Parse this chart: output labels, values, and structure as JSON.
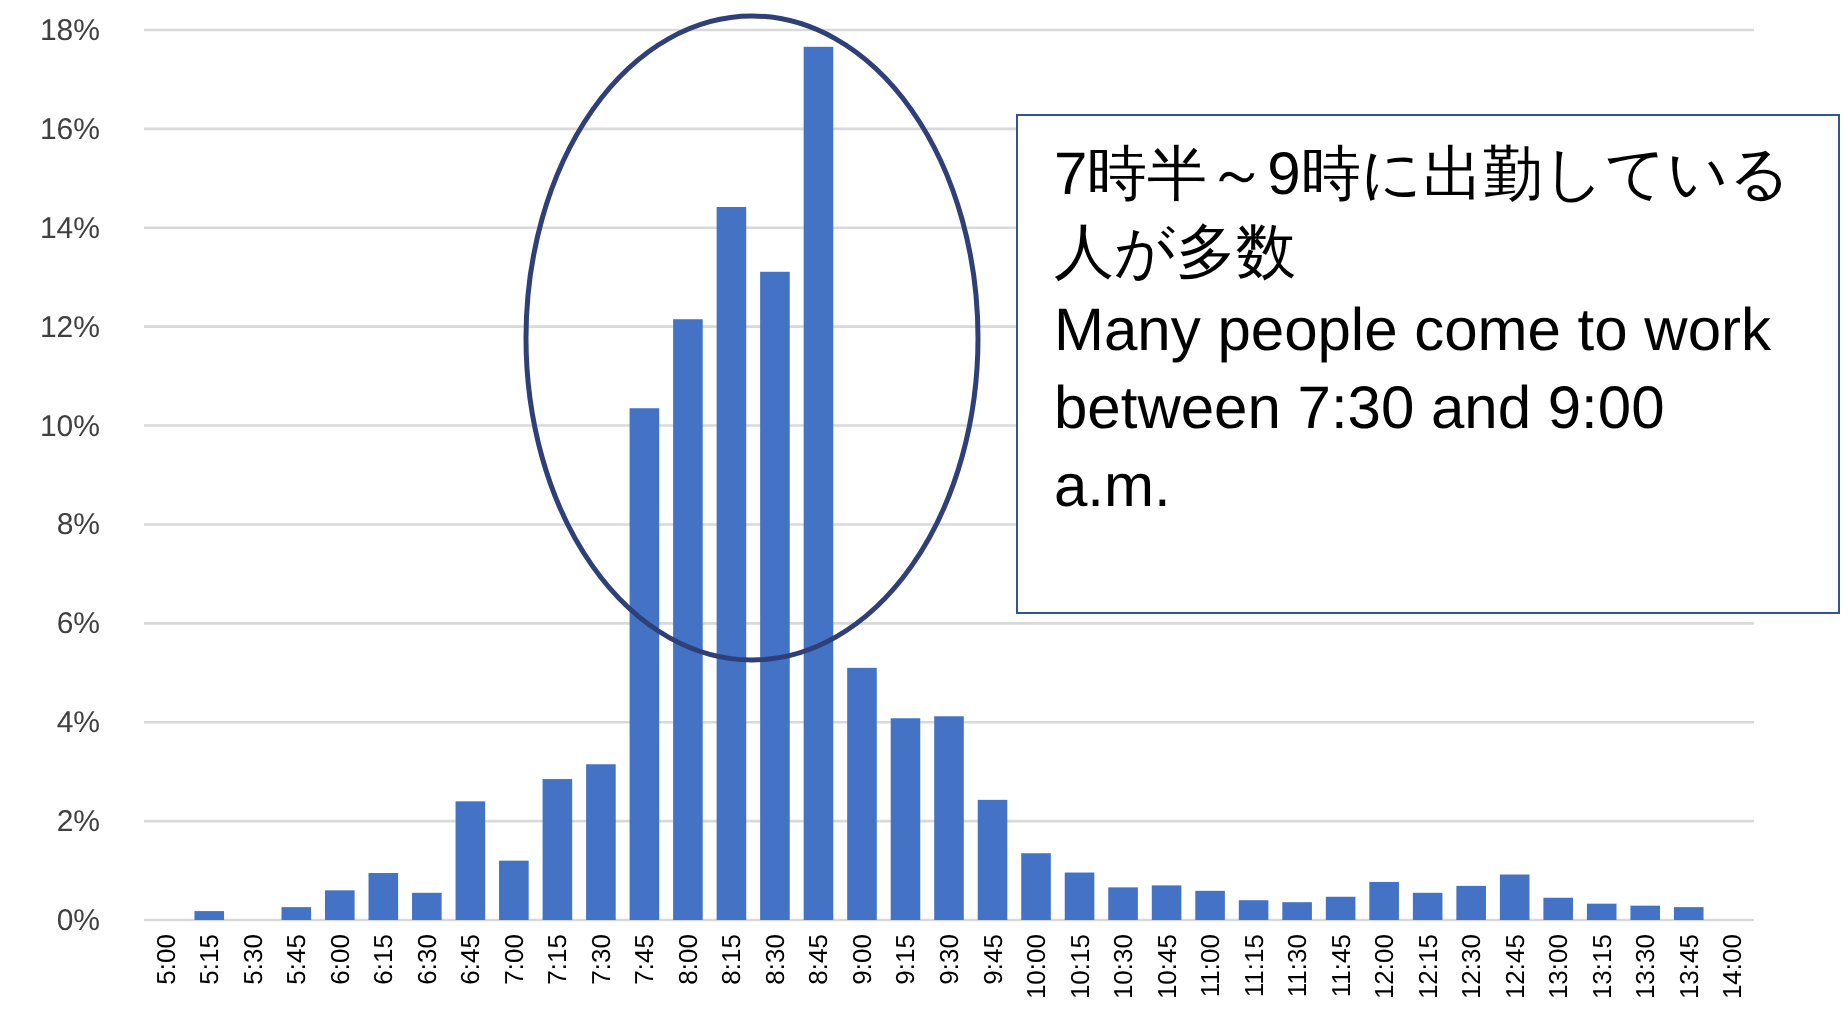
{
  "chart_data": {
    "type": "bar",
    "categories": [
      "5:00",
      "5:15",
      "5:30",
      "5:45",
      "6:00",
      "6:15",
      "6:30",
      "6:45",
      "7:00",
      "7:15",
      "7:30",
      "7:45",
      "8:00",
      "8:15",
      "8:30",
      "8:45",
      "9:00",
      "9:15",
      "9:30",
      "9:45",
      "10:00",
      "10:15",
      "10:30",
      "10:45",
      "11:00",
      "11:15",
      "11:30",
      "11:45",
      "12:00",
      "12:15",
      "12:30",
      "12:45",
      "13:00",
      "13:15",
      "13:30",
      "13:45",
      "14:00"
    ],
    "values": [
      0,
      0.18,
      0,
      0.26,
      0.6,
      0.95,
      0.55,
      2.4,
      1.2,
      2.85,
      3.15,
      10.35,
      12.15,
      14.42,
      13.11,
      17.66,
      5.1,
      4.08,
      4.12,
      2.43,
      1.35,
      0.96,
      0.66,
      0.7,
      0.59,
      0.4,
      0.36,
      0.47,
      0.77,
      0.55,
      0.69,
      0.92,
      0.45,
      0.33,
      0.29,
      0.26,
      0
    ],
    "color": "#4472c4",
    "ylim": [
      0,
      18
    ],
    "yticks": [
      {
        "value": 0,
        "label": "0%"
      },
      {
        "value": 2,
        "label": "2%"
      },
      {
        "value": 4,
        "label": "4%"
      },
      {
        "value": 6,
        "label": "6%"
      },
      {
        "value": 8,
        "label": "8%"
      },
      {
        "value": 10,
        "label": "10%"
      },
      {
        "value": 12,
        "label": "12%"
      },
      {
        "value": 14,
        "label": "14%"
      },
      {
        "value": 16,
        "label": "16%"
      },
      {
        "value": 18,
        "label": "18%"
      }
    ],
    "grid": "y",
    "annotations": [
      "7時半～9時に出勤している人が多数",
      "Many people come to work between 7:30 and 9:00 a.m."
    ]
  }
}
